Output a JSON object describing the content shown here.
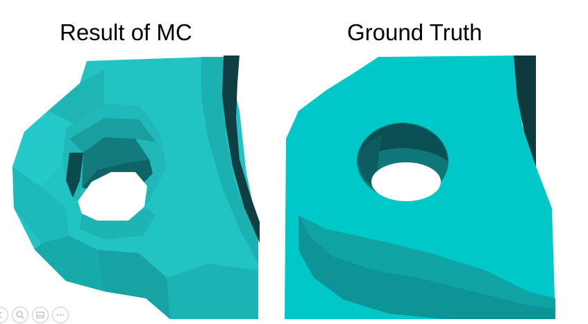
{
  "captions": {
    "left": "Result of MC",
    "right": "Ground Truth"
  },
  "colors": {
    "mesh_base": "#21c2c2",
    "mesh_dark": "#0a5e5e",
    "hole_fill": "#ffffff",
    "background": "#ffffff",
    "toolbar_icon": "#c0c0c0"
  },
  "toolbar": {
    "icons": [
      "previous-icon",
      "zoom-icon",
      "slide-view-icon",
      "more-options-icon"
    ]
  }
}
